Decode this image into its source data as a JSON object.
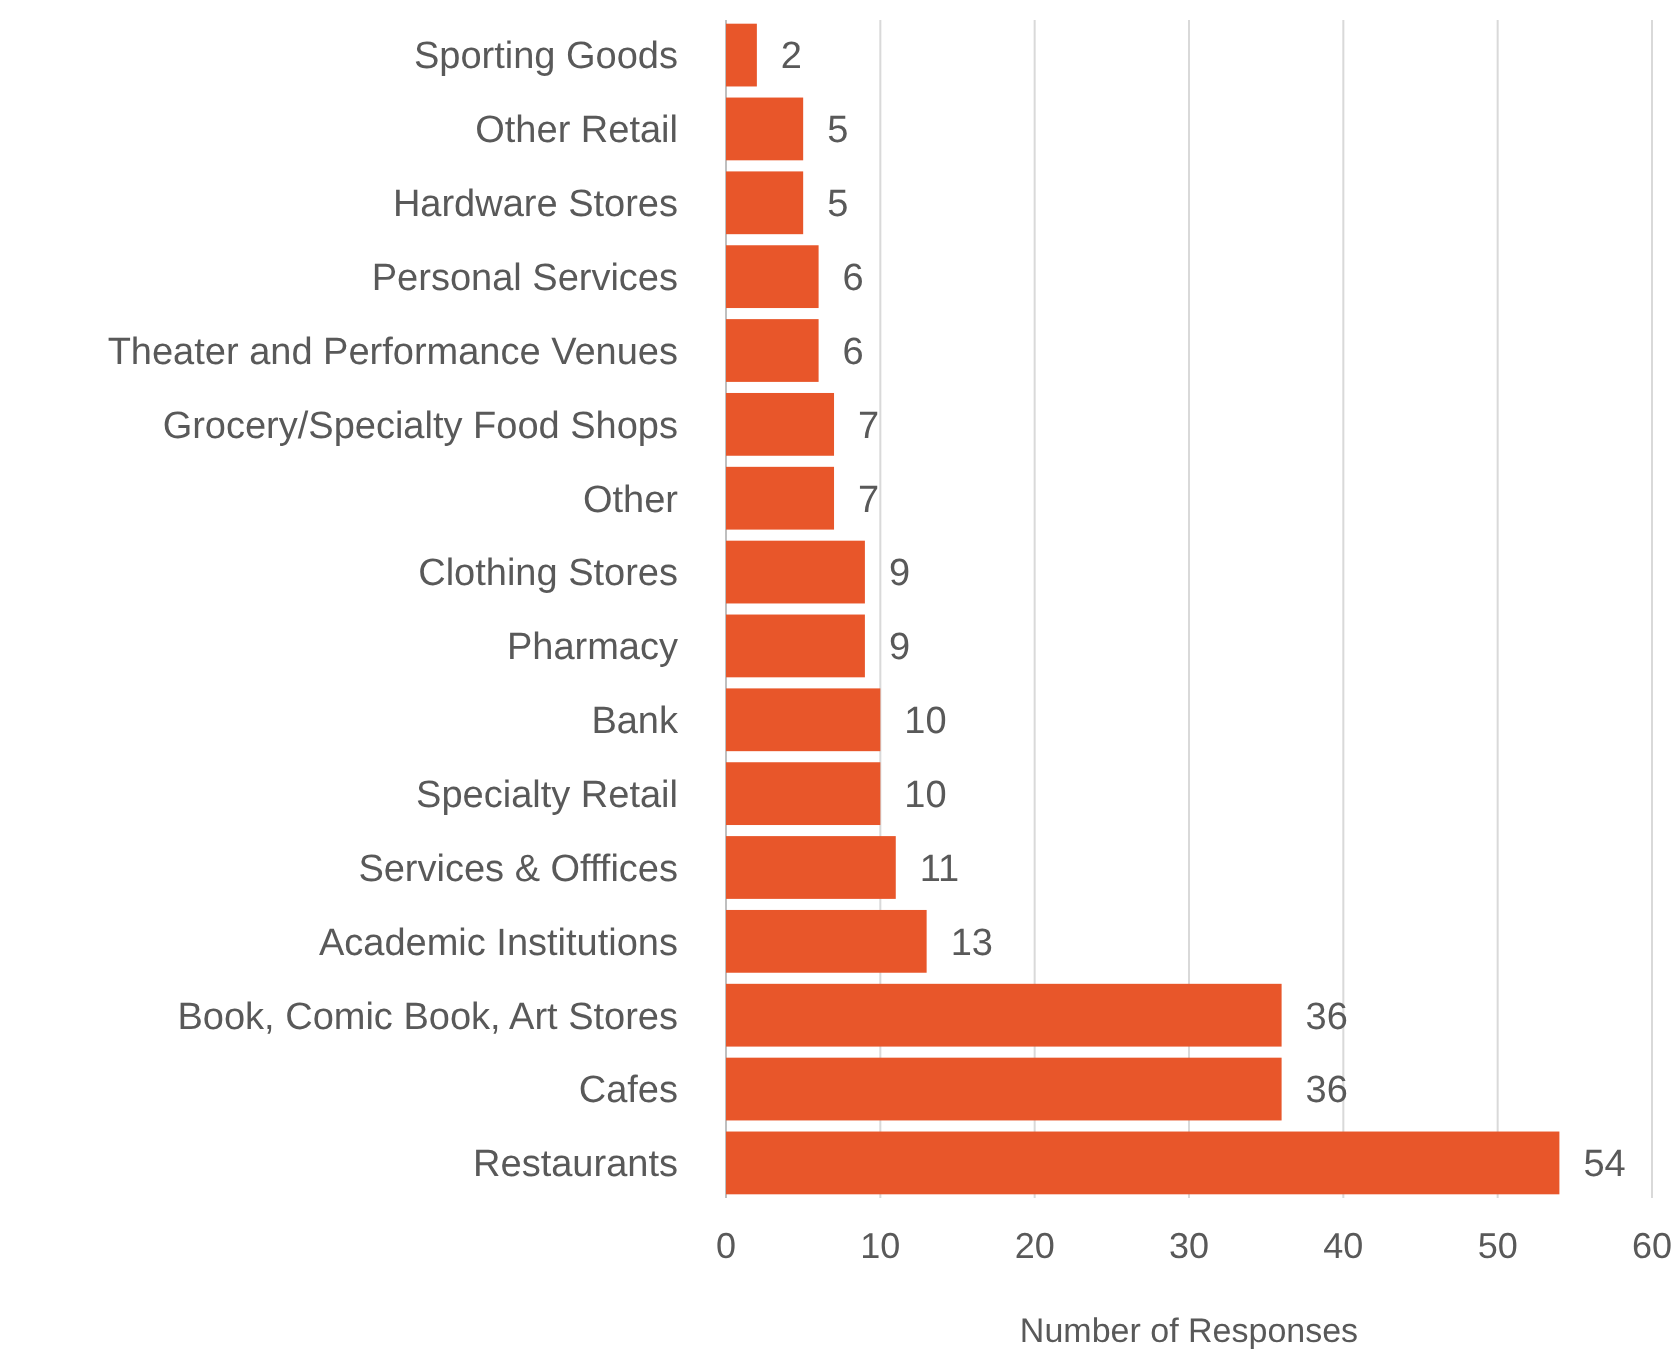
{
  "chart_data": {
    "type": "bar",
    "orientation": "horizontal",
    "xlabel": "Number of Responses",
    "categories": [
      "Sporting Goods",
      "Other Retail",
      "Hardware Stores",
      "Personal Services",
      "Theater and Performance Venues",
      "Grocery/Specialty Food Shops",
      "Other",
      "Clothing Stores",
      "Pharmacy",
      "Bank",
      "Specialty Retail",
      "Services & Offfices",
      "Academic Institutions",
      "Book, Comic Book, Art Stores",
      "Cafes",
      "Restaurants"
    ],
    "values": [
      2,
      5,
      5,
      6,
      6,
      7,
      7,
      9,
      9,
      10,
      10,
      11,
      13,
      36,
      36,
      54
    ],
    "color": "#e8562a",
    "xlim": [
      0,
      60
    ],
    "xticks": [
      0,
      10,
      20,
      30,
      40,
      50,
      60
    ],
    "grid": "x",
    "data_labels": true
  }
}
